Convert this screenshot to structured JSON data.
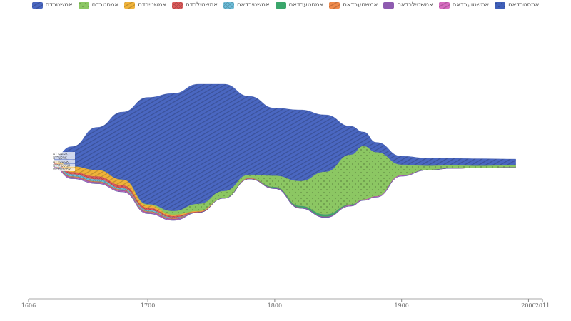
{
  "chart_data": {
    "type": "area",
    "subtype": "streamgraph",
    "title": "",
    "xlabel": "",
    "ylabel": "",
    "xlim": [
      1606,
      2011
    ],
    "x_ticks": [
      1606,
      1700,
      1800,
      1900,
      2000,
      2011
    ],
    "grid": false,
    "legend_position": "top",
    "x": [
      1626,
      1640,
      1660,
      1680,
      1700,
      1720,
      1740,
      1760,
      1780,
      1800,
      1820,
      1840,
      1860,
      1870,
      1880,
      1900,
      1920,
      1940,
      1960,
      1990
    ],
    "series": [
      {
        "name": "אמשטרדם",
        "color": "#4a67c1",
        "pattern": "diagonal-stripes",
        "values": [
          5,
          28,
          60,
          95,
          150,
          165,
          168,
          150,
          110,
          95,
          100,
          80,
          40,
          20,
          14,
          12,
          11,
          10,
          10,
          9
        ]
      },
      {
        "name": "אמסטרדם",
        "color": "#8cc763",
        "pattern": "dots",
        "values": [
          0,
          0,
          0,
          0,
          1,
          5,
          10,
          10,
          5,
          16,
          35,
          60,
          70,
          75,
          62,
          15,
          6,
          4,
          3,
          3
        ]
      },
      {
        "name": "אמשטירדם",
        "color": "#f0b33a",
        "pattern": "diagonal-stripes",
        "values": [
          4,
          8,
          9,
          8,
          4,
          2,
          1,
          0,
          0,
          0,
          0,
          0,
          0,
          0,
          0,
          0,
          0,
          0,
          0,
          0
        ]
      },
      {
        "name": "אמשטילרדם",
        "color": "#e15c5c",
        "pattern": "crosshatch",
        "values": [
          2,
          3,
          4,
          4,
          3,
          2,
          1,
          0,
          0,
          0,
          0,
          0,
          0,
          0,
          0,
          0,
          0,
          0,
          0,
          0
        ]
      },
      {
        "name": "אמשטירדאם",
        "color": "#6ebfdc",
        "pattern": "crosshatch",
        "values": [
          2,
          3,
          3,
          2,
          2,
          1,
          0,
          0,
          0,
          0,
          0,
          0,
          0,
          0,
          0,
          0,
          0,
          0,
          0,
          0
        ]
      },
      {
        "name": "אמסטערדאם",
        "color": "#3aa66b",
        "pattern": "solid",
        "values": [
          0,
          0,
          0,
          0,
          0,
          0,
          0,
          0,
          0,
          1,
          2,
          3,
          1,
          0,
          0,
          0,
          0,
          0,
          0,
          0
        ]
      },
      {
        "name": "אמשטערדאם",
        "color": "#f08a4b",
        "pattern": "diagonal-stripes",
        "values": [
          1,
          1,
          1,
          1,
          1,
          1,
          0,
          0,
          1,
          0,
          0,
          0,
          0,
          0,
          0,
          0,
          0,
          0,
          0,
          0
        ]
      },
      {
        "name": "אמשטילרדאם",
        "color": "#8e5bb0",
        "pattern": "solid",
        "values": [
          1,
          1,
          1,
          1,
          1,
          1,
          0,
          0,
          0,
          1,
          1,
          1,
          0,
          0,
          0,
          0,
          0,
          0,
          0,
          0
        ]
      },
      {
        "name": "אמשטוערדאם",
        "color": "#d66bbf",
        "pattern": "diagonal-stripes",
        "values": [
          1,
          1,
          1,
          1,
          1,
          1,
          0,
          0,
          0,
          0,
          0,
          0,
          1,
          1,
          1,
          1,
          0,
          0,
          0,
          0
        ]
      },
      {
        "name": "אמסטרדאם",
        "color": "#3f5fb8",
        "pattern": "dots",
        "values": [
          0,
          0,
          0,
          0,
          0,
          0,
          0,
          0,
          0,
          0,
          0,
          0,
          0,
          0,
          0,
          0,
          0,
          0,
          0,
          0
        ]
      }
    ],
    "start_labels": [
      "אמשטרדם",
      "אמסטרדם",
      "אמשטירדם",
      "אמשטילרדם",
      "אמשטירדאם"
    ]
  }
}
